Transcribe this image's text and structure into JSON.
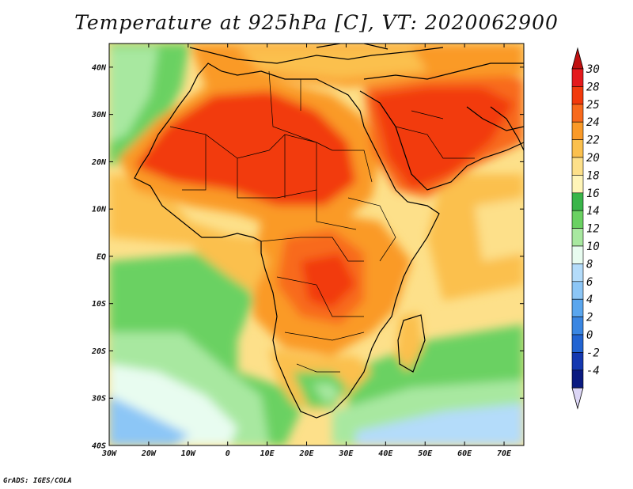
{
  "title": "Temperature at 925hPa [C], VT: 2020062900",
  "credit": "GrADS: IGES/COLA",
  "map": {
    "lon_range": [
      -30,
      75
    ],
    "lat_range": [
      -40,
      45
    ],
    "lat_ticks": [
      {
        "value": 40,
        "label": "40N"
      },
      {
        "value": 30,
        "label": "30N"
      },
      {
        "value": 20,
        "label": "20N"
      },
      {
        "value": 10,
        "label": "10N"
      },
      {
        "value": 0,
        "label": "EQ"
      },
      {
        "value": -10,
        "label": "10S"
      },
      {
        "value": -20,
        "label": "20S"
      },
      {
        "value": -30,
        "label": "30S"
      },
      {
        "value": -40,
        "label": "40S"
      }
    ],
    "lon_ticks": [
      {
        "value": -30,
        "label": "30W"
      },
      {
        "value": -20,
        "label": "20W"
      },
      {
        "value": -10,
        "label": "10W"
      },
      {
        "value": 0,
        "label": "0"
      },
      {
        "value": 10,
        "label": "10E"
      },
      {
        "value": 20,
        "label": "20E"
      },
      {
        "value": 30,
        "label": "30E"
      },
      {
        "value": 40,
        "label": "40E"
      },
      {
        "value": 50,
        "label": "50E"
      },
      {
        "value": 60,
        "label": "60E"
      },
      {
        "value": 70,
        "label": "70E"
      }
    ]
  },
  "colorbar": {
    "levels": [
      {
        "label": "30",
        "color": "#e41a1c"
      },
      {
        "label": "28",
        "color": "#f23a0c"
      },
      {
        "label": "25",
        "color": "#f86a1c"
      },
      {
        "label": "24",
        "color": "#fa9a28"
      },
      {
        "label": "22",
        "color": "#fbc04e"
      },
      {
        "label": "20",
        "color": "#fde08a"
      },
      {
        "label": "18",
        "color": "#fff5b8"
      },
      {
        "label": "16",
        "color": "#3ab54a"
      },
      {
        "label": "14",
        "color": "#6ad162"
      },
      {
        "label": "12",
        "color": "#a8e8a0"
      },
      {
        "label": "10",
        "color": "#e8fcf0"
      },
      {
        "label": "8",
        "color": "#b4dcfa"
      },
      {
        "label": "6",
        "color": "#8cc6f6"
      },
      {
        "label": "4",
        "color": "#5aa6ee"
      },
      {
        "label": "2",
        "color": "#3a86e2"
      },
      {
        "label": "0",
        "color": "#2264d2"
      },
      {
        "label": "-2",
        "color": "#1438b0"
      },
      {
        "label": "-4",
        "color": "#0a1a80"
      }
    ],
    "top_color": "#c01010",
    "bottom_color": "#dcd6f6"
  }
}
